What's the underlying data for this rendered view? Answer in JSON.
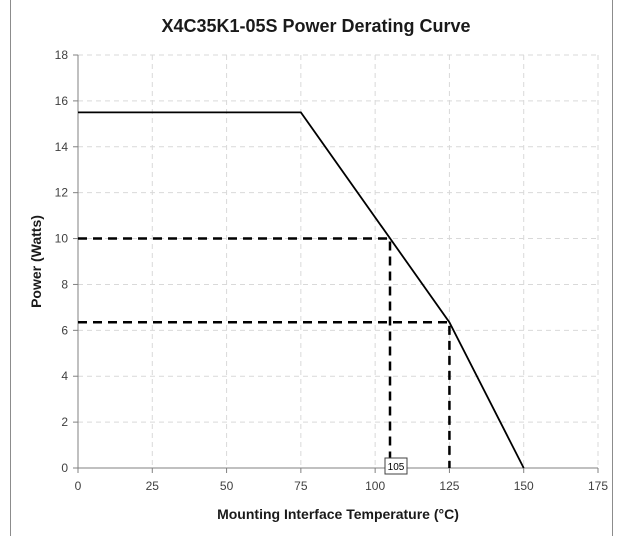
{
  "chart_data": {
    "type": "line",
    "title": "X4C35K1-05S Power Derating Curve",
    "xlabel": "Mounting Interface Temperature (°C)",
    "ylabel": "Power (Watts)",
    "xlim": [
      0,
      175
    ],
    "ylim": [
      0,
      18
    ],
    "x_ticks": [
      0,
      25,
      50,
      75,
      100,
      125,
      150,
      175
    ],
    "y_ticks": [
      0,
      2,
      4,
      6,
      8,
      10,
      12,
      14,
      16,
      18
    ],
    "grid": true,
    "legend": "none",
    "series": [
      {
        "x": [
          0,
          75,
          125,
          150
        ],
        "y": [
          15.5,
          15.5,
          6.35,
          0
        ],
        "color": "#000000"
      }
    ],
    "reference_lines": [
      {
        "points": [
          [
            0,
            10
          ],
          [
            105,
            10
          ],
          [
            105,
            0
          ]
        ],
        "style": "dashed"
      },
      {
        "points": [
          [
            0,
            6.35
          ],
          [
            125,
            6.35
          ],
          [
            125,
            0
          ]
        ],
        "style": "dashed"
      }
    ],
    "annotations": [
      {
        "x": 105,
        "y": 0,
        "text": "105"
      }
    ]
  },
  "colors": {
    "line": "#000000",
    "grid": "#d9d9d9",
    "axis": "#808080",
    "frame": "#8c8c8c"
  }
}
